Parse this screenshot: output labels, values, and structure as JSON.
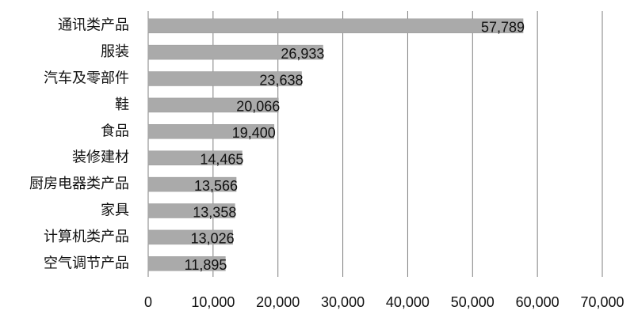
{
  "chart_data": {
    "type": "bar",
    "orientation": "horizontal",
    "categories": [
      "通讯类产品",
      "服装",
      "汽车及零部件",
      "鞋",
      "食品",
      "装修建材",
      "厨房电器类产品",
      "家具",
      "计算机类产品",
      "空气调节产品"
    ],
    "values": [
      57789,
      26933,
      23638,
      20066,
      19400,
      14465,
      13566,
      13358,
      13026,
      11895
    ],
    "value_labels": [
      "57,789",
      "26,933",
      "23,638",
      "20,066",
      "19,400",
      "14,465",
      "13,566",
      "13,358",
      "13,026",
      "11,895"
    ],
    "color": "#aaaaaa",
    "xlim": [
      0,
      70000
    ],
    "xticks": [
      0,
      {
        "value": 10000,
        "label": "10,000"
      },
      {
        "value": 20000,
        "label": "20,000"
      },
      {
        "value": 30000,
        "label": "30,000"
      },
      {
        "value": 40000,
        "label": "40,000"
      },
      {
        "value": 50000,
        "label": "50,000"
      },
      {
        "value": 60000,
        "label": "60,000"
      },
      {
        "value": 70000,
        "label": "70,000"
      }
    ],
    "grid": true
  }
}
